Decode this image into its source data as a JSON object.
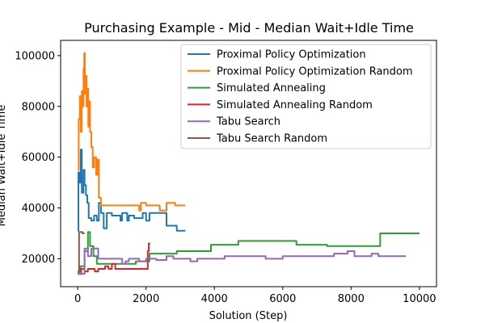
{
  "chart_data": {
    "type": "line",
    "title": "Purchasing Example - Mid - Median Wait+Idle Time",
    "xlabel": "Solution (Step)",
    "ylabel": "Median Wait+Idle Time",
    "xlim": [
      -500,
      10500
    ],
    "ylim": [
      9000,
      106000
    ],
    "xticks": [
      0,
      2000,
      4000,
      6000,
      8000,
      10000
    ],
    "yticks": [
      20000,
      40000,
      60000,
      80000,
      100000
    ],
    "legend_position": "top-right",
    "grid": false,
    "series": [
      {
        "name": "Proximal Policy Optimization",
        "color": "#1f77b4",
        "points": [
          [
            0,
            31000
          ],
          [
            20,
            31000
          ],
          [
            20,
            54000
          ],
          [
            60,
            54000
          ],
          [
            60,
            50000
          ],
          [
            90,
            50000
          ],
          [
            90,
            63000
          ],
          [
            120,
            63000
          ],
          [
            120,
            46000
          ],
          [
            170,
            46000
          ],
          [
            170,
            55000
          ],
          [
            200,
            55000
          ],
          [
            200,
            49000
          ],
          [
            240,
            49000
          ],
          [
            240,
            45000
          ],
          [
            280,
            45000
          ],
          [
            280,
            42000
          ],
          [
            320,
            42000
          ],
          [
            320,
            36000
          ],
          [
            400,
            36000
          ],
          [
            400,
            35000
          ],
          [
            480,
            35000
          ],
          [
            480,
            37000
          ],
          [
            560,
            37000
          ],
          [
            560,
            35000
          ],
          [
            620,
            35000
          ],
          [
            620,
            42000
          ],
          [
            680,
            42000
          ],
          [
            680,
            38000
          ],
          [
            760,
            38000
          ],
          [
            760,
            32000
          ],
          [
            850,
            32000
          ],
          [
            850,
            38000
          ],
          [
            1000,
            38000
          ],
          [
            1000,
            37000
          ],
          [
            1250,
            37000
          ],
          [
            1250,
            35000
          ],
          [
            1300,
            35000
          ],
          [
            1300,
            38000
          ],
          [
            1450,
            38000
          ],
          [
            1450,
            35000
          ],
          [
            1500,
            35000
          ],
          [
            1500,
            37000
          ],
          [
            1650,
            37000
          ],
          [
            1650,
            36000
          ],
          [
            1900,
            36000
          ],
          [
            1900,
            38000
          ],
          [
            2000,
            38000
          ],
          [
            2000,
            35000
          ],
          [
            2100,
            35000
          ],
          [
            2100,
            38000
          ],
          [
            2600,
            38000
          ],
          [
            2600,
            33000
          ],
          [
            2900,
            33000
          ],
          [
            2900,
            31000
          ],
          [
            3150,
            31000
          ]
        ]
      },
      {
        "name": "Proximal Policy Optimization Random",
        "color": "#ff7f0e",
        "points": [
          [
            0,
            55000
          ],
          [
            30,
            55000
          ],
          [
            30,
            75000
          ],
          [
            60,
            75000
          ],
          [
            60,
            84000
          ],
          [
            90,
            84000
          ],
          [
            90,
            70000
          ],
          [
            120,
            70000
          ],
          [
            120,
            86000
          ],
          [
            150,
            86000
          ],
          [
            150,
            80000
          ],
          [
            170,
            80000
          ],
          [
            170,
            95000
          ],
          [
            190,
            95000
          ],
          [
            190,
            101000
          ],
          [
            210,
            101000
          ],
          [
            210,
            85000
          ],
          [
            240,
            85000
          ],
          [
            240,
            92000
          ],
          [
            260,
            92000
          ],
          [
            260,
            80000
          ],
          [
            290,
            80000
          ],
          [
            290,
            87000
          ],
          [
            310,
            87000
          ],
          [
            310,
            72000
          ],
          [
            340,
            72000
          ],
          [
            340,
            82000
          ],
          [
            360,
            82000
          ],
          [
            360,
            70000
          ],
          [
            400,
            70000
          ],
          [
            400,
            64000
          ],
          [
            440,
            64000
          ],
          [
            440,
            56000
          ],
          [
            480,
            56000
          ],
          [
            480,
            60000
          ],
          [
            540,
            60000
          ],
          [
            540,
            53000
          ],
          [
            580,
            53000
          ],
          [
            580,
            59000
          ],
          [
            620,
            59000
          ],
          [
            620,
            44000
          ],
          [
            680,
            44000
          ],
          [
            680,
            41000
          ],
          [
            1800,
            41000
          ],
          [
            1800,
            39000
          ],
          [
            1850,
            39000
          ],
          [
            1850,
            42000
          ],
          [
            2000,
            42000
          ],
          [
            2000,
            41000
          ],
          [
            2400,
            41000
          ],
          [
            2400,
            39000
          ],
          [
            2600,
            39000
          ],
          [
            2600,
            42000
          ],
          [
            2850,
            42000
          ],
          [
            2850,
            41000
          ],
          [
            3150,
            41000
          ]
        ]
      },
      {
        "name": "Simulated Annealing",
        "color": "#2ca02c",
        "points": [
          [
            0,
            15000
          ],
          [
            80,
            15000
          ],
          [
            80,
            17000
          ],
          [
            200,
            17000
          ],
          [
            200,
            23000
          ],
          [
            300,
            23000
          ],
          [
            300,
            30500
          ],
          [
            360,
            30500
          ],
          [
            360,
            25000
          ],
          [
            460,
            25000
          ],
          [
            460,
            21000
          ],
          [
            560,
            21000
          ],
          [
            560,
            18000
          ],
          [
            1700,
            18000
          ],
          [
            1700,
            19000
          ],
          [
            2100,
            19000
          ],
          [
            2100,
            22000
          ],
          [
            2900,
            22000
          ],
          [
            2900,
            23000
          ],
          [
            3900,
            23000
          ],
          [
            3900,
            25500
          ],
          [
            4700,
            25500
          ],
          [
            4700,
            27000
          ],
          [
            6400,
            27000
          ],
          [
            6400,
            25500
          ],
          [
            7300,
            25500
          ],
          [
            7300,
            25000
          ],
          [
            8850,
            25000
          ],
          [
            8850,
            30000
          ],
          [
            10000,
            30000
          ]
        ]
      },
      {
        "name": "Simulated Annealing Random",
        "color": "#d62728",
        "points": [
          [
            0,
            14000
          ],
          [
            100,
            14000
          ],
          [
            100,
            16000
          ],
          [
            200,
            16000
          ],
          [
            200,
            15000
          ],
          [
            300,
            15000
          ],
          [
            300,
            16000
          ],
          [
            500,
            16000
          ],
          [
            500,
            15000
          ],
          [
            600,
            15000
          ],
          [
            600,
            16000
          ],
          [
            800,
            16000
          ],
          [
            800,
            17000
          ],
          [
            900,
            17000
          ],
          [
            900,
            16000
          ],
          [
            1000,
            16000
          ],
          [
            1000,
            18000
          ],
          [
            1100,
            18000
          ],
          [
            1100,
            16000
          ],
          [
            2050,
            16000
          ],
          [
            2050,
            23000
          ],
          [
            2080,
            23000
          ],
          [
            2080,
            26000
          ],
          [
            2120,
            26000
          ]
        ]
      },
      {
        "name": "Tabu Search",
        "color": "#9467bd",
        "points": [
          [
            0,
            14000
          ],
          [
            200,
            14000
          ],
          [
            200,
            24000
          ],
          [
            300,
            24000
          ],
          [
            300,
            21000
          ],
          [
            400,
            21000
          ],
          [
            400,
            24000
          ],
          [
            600,
            24000
          ],
          [
            600,
            20000
          ],
          [
            1300,
            20000
          ],
          [
            1300,
            18000
          ],
          [
            1400,
            18000
          ],
          [
            1400,
            19000
          ],
          [
            1500,
            19000
          ],
          [
            1500,
            20000
          ],
          [
            1800,
            20000
          ],
          [
            1800,
            19000
          ],
          [
            2000,
            19000
          ],
          [
            2000,
            20000
          ],
          [
            2300,
            20000
          ],
          [
            2300,
            19500
          ],
          [
            2600,
            19500
          ],
          [
            2600,
            21000
          ],
          [
            2800,
            21000
          ],
          [
            2800,
            20000
          ],
          [
            3300,
            20000
          ],
          [
            3300,
            19000
          ],
          [
            3500,
            19000
          ],
          [
            3500,
            20000
          ],
          [
            4300,
            20000
          ],
          [
            4300,
            21000
          ],
          [
            5500,
            21000
          ],
          [
            5500,
            20000
          ],
          [
            6000,
            20000
          ],
          [
            6000,
            21000
          ],
          [
            7500,
            21000
          ],
          [
            7500,
            22000
          ],
          [
            7900,
            22000
          ],
          [
            7900,
            23000
          ],
          [
            8100,
            23000
          ],
          [
            8100,
            21000
          ],
          [
            8600,
            21000
          ],
          [
            8600,
            22000
          ],
          [
            8800,
            22000
          ],
          [
            8800,
            21000
          ],
          [
            9600,
            21000
          ]
        ]
      },
      {
        "name": "Tabu Search Random",
        "color": "#8c564b",
        "points": [
          [
            0,
            14500
          ],
          [
            40,
            14500
          ],
          [
            40,
            30500
          ],
          [
            140,
            30500
          ],
          [
            140,
            30000
          ],
          [
            200,
            30000
          ]
        ]
      }
    ]
  }
}
